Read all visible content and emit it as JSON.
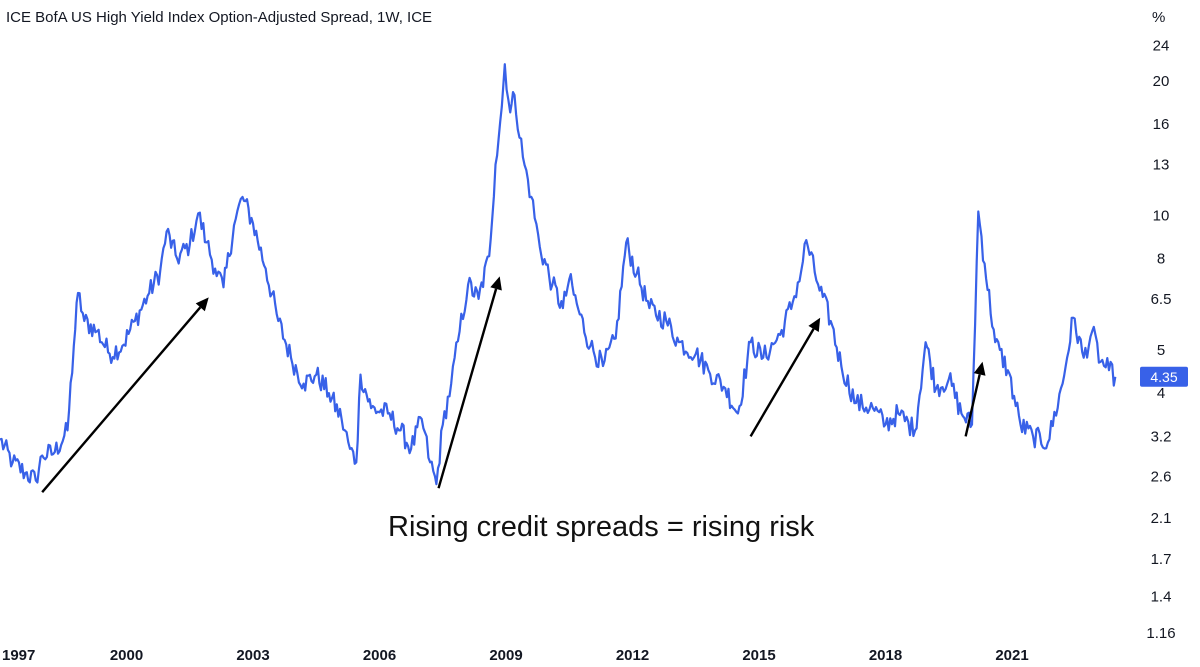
{
  "chart_data": {
    "type": "line",
    "title": "ICE BofA US High Yield Index Option-Adjusted Spread, 1W, ICE",
    "y_unit_label": "%",
    "y_scale": "log",
    "ylim": [
      1.12,
      26
    ],
    "xlim": [
      1997.0,
      2023.75
    ],
    "y_ticks": [
      "24",
      "20",
      "16",
      "13",
      "10",
      "8",
      "6.5",
      "5",
      "4",
      "3.2",
      "2.6",
      "2.1",
      "1.7",
      "1.4",
      "1.16"
    ],
    "y_tick_values": [
      24,
      20,
      16,
      13,
      10,
      8,
      6.5,
      5,
      4,
      3.2,
      2.6,
      2.1,
      1.7,
      1.4,
      1.16
    ],
    "x_ticks": [
      "1997",
      "2000",
      "2003",
      "2006",
      "2009",
      "2012",
      "2015",
      "2018",
      "2021"
    ],
    "x_tick_values": [
      1997,
      2000,
      2003,
      2006,
      2009,
      2012,
      2015,
      2018,
      2021
    ],
    "last_value_label": "4.35",
    "annotation": "Rising credit spreads = rising risk",
    "arrows": [
      {
        "from": [
          1998.0,
          2.4
        ],
        "to": [
          2001.95,
          6.55
        ]
      },
      {
        "from": [
          2007.4,
          2.45
        ],
        "to": [
          2008.85,
          7.3
        ]
      },
      {
        "from": [
          2014.8,
          3.2
        ],
        "to": [
          2016.45,
          5.9
        ]
      },
      {
        "from": [
          2019.9,
          3.2
        ],
        "to": [
          2020.3,
          4.7
        ]
      }
    ],
    "series": [
      {
        "color": "#3861e8",
        "points": [
          [
            1997.0,
            3.15
          ],
          [
            1997.3,
            2.8
          ],
          [
            1997.6,
            2.65
          ],
          [
            1997.85,
            2.55
          ],
          [
            1998.0,
            2.9
          ],
          [
            1998.3,
            2.95
          ],
          [
            1998.6,
            3.3
          ],
          [
            1998.75,
            5.1
          ],
          [
            1998.85,
            6.7
          ],
          [
            1999.0,
            5.8
          ],
          [
            1999.3,
            5.5
          ],
          [
            1999.6,
            4.9
          ],
          [
            1999.9,
            5.1
          ],
          [
            2000.2,
            5.8
          ],
          [
            2000.5,
            6.6
          ],
          [
            2000.8,
            7.5
          ],
          [
            2000.95,
            9.2
          ],
          [
            2001.2,
            8.0
          ],
          [
            2001.5,
            8.6
          ],
          [
            2001.7,
            10.1
          ],
          [
            2001.9,
            8.7
          ],
          [
            2002.1,
            7.6
          ],
          [
            2002.3,
            6.9
          ],
          [
            2002.55,
            9.5
          ],
          [
            2002.75,
            11.0
          ],
          [
            2003.0,
            9.6
          ],
          [
            2003.3,
            7.6
          ],
          [
            2003.6,
            5.8
          ],
          [
            2003.9,
            4.8
          ],
          [
            2004.2,
            4.2
          ],
          [
            2004.5,
            4.4
          ],
          [
            2004.8,
            4.0
          ],
          [
            2005.1,
            3.5
          ],
          [
            2005.3,
            3.0
          ],
          [
            2005.45,
            2.8
          ],
          [
            2005.55,
            4.4
          ],
          [
            2005.8,
            3.7
          ],
          [
            2006.2,
            3.6
          ],
          [
            2006.5,
            3.3
          ],
          [
            2006.75,
            3.0
          ],
          [
            2007.0,
            3.5
          ],
          [
            2007.2,
            2.8
          ],
          [
            2007.35,
            2.5
          ],
          [
            2007.5,
            3.4
          ],
          [
            2007.7,
            4.2
          ],
          [
            2007.9,
            5.5
          ],
          [
            2008.1,
            7.0
          ],
          [
            2008.35,
            6.5
          ],
          [
            2008.6,
            8.1
          ],
          [
            2008.75,
            13.0
          ],
          [
            2008.9,
            17.5
          ],
          [
            2008.97,
            21.8
          ],
          [
            2009.1,
            17.0
          ],
          [
            2009.2,
            18.6
          ],
          [
            2009.4,
            13.5
          ],
          [
            2009.6,
            11.0
          ],
          [
            2009.8,
            8.5
          ],
          [
            2010.1,
            7.0
          ],
          [
            2010.35,
            6.2
          ],
          [
            2010.5,
            7.2
          ],
          [
            2010.75,
            6.0
          ],
          [
            2011.0,
            5.1
          ],
          [
            2011.3,
            4.6
          ],
          [
            2011.6,
            5.3
          ],
          [
            2011.85,
            8.7
          ],
          [
            2012.1,
            7.4
          ],
          [
            2012.4,
            6.2
          ],
          [
            2012.8,
            5.8
          ],
          [
            2013.1,
            5.2
          ],
          [
            2013.5,
            4.9
          ],
          [
            2013.8,
            4.5
          ],
          [
            2014.2,
            4.1
          ],
          [
            2014.5,
            3.6
          ],
          [
            2014.8,
            5.2
          ],
          [
            2015.1,
            4.8
          ],
          [
            2015.5,
            5.4
          ],
          [
            2015.8,
            6.4
          ],
          [
            2016.0,
            7.5
          ],
          [
            2016.12,
            8.8
          ],
          [
            2016.4,
            7.0
          ],
          [
            2016.7,
            5.8
          ],
          [
            2016.95,
            4.6
          ],
          [
            2017.3,
            3.8
          ],
          [
            2017.7,
            3.7
          ],
          [
            2018.0,
            3.4
          ],
          [
            2018.3,
            3.6
          ],
          [
            2018.7,
            3.3
          ],
          [
            2018.95,
            5.2
          ],
          [
            2019.2,
            4.1
          ],
          [
            2019.5,
            4.3
          ],
          [
            2019.8,
            3.6
          ],
          [
            2020.05,
            3.4
          ],
          [
            2020.2,
            10.2
          ],
          [
            2020.35,
            7.8
          ],
          [
            2020.6,
            5.2
          ],
          [
            2020.9,
            4.5
          ],
          [
            2021.2,
            3.4
          ],
          [
            2021.5,
            3.2
          ],
          [
            2021.85,
            3.1
          ],
          [
            2022.2,
            4.2
          ],
          [
            2022.45,
            5.9
          ],
          [
            2022.7,
            4.8
          ],
          [
            2022.9,
            5.5
          ],
          [
            2023.1,
            4.7
          ],
          [
            2023.3,
            4.5
          ],
          [
            2023.45,
            4.35
          ]
        ]
      }
    ]
  }
}
